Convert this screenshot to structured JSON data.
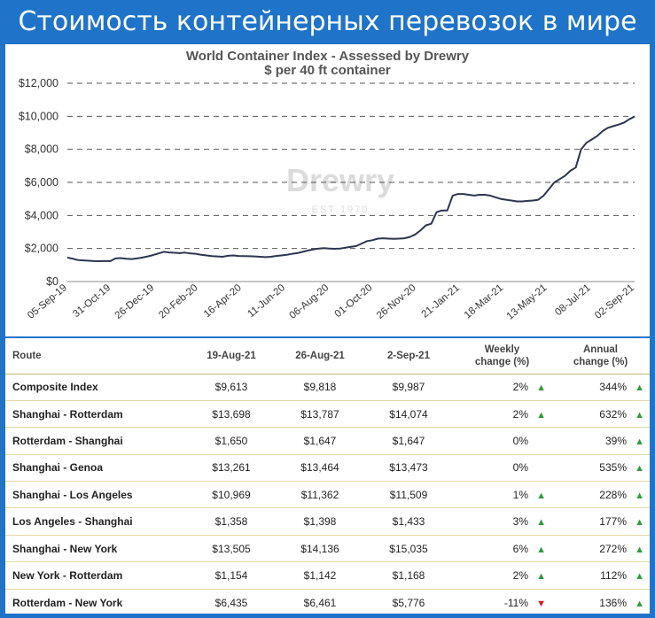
{
  "banner": {
    "title": "Стоимость контейнерных перевозок в мире"
  },
  "chart_data": {
    "type": "line",
    "title": "World Container Index - Assessed by Drewry",
    "subtitle": "$ per 40 ft container",
    "watermark": "Drewry",
    "watermark_sub": "EST 1970",
    "ylim": [
      0,
      12000
    ],
    "yticks": [
      0,
      2000,
      4000,
      6000,
      8000,
      10000,
      12000
    ],
    "ytick_labels": [
      "$0",
      "$2,000",
      "$4,000",
      "$6,000",
      "$8,000",
      "$10,000",
      "$12,000"
    ],
    "xtick_labels": [
      "05-Sep-19",
      "31-Oct-19",
      "26-Dec-19",
      "20-Feb-20",
      "16-Apr-20",
      "11-Jun-20",
      "06-Aug-20",
      "01-Oct-20",
      "26-Nov-20",
      "21-Jan-21",
      "18-Mar-21",
      "13-May-21",
      "08-Jul-21",
      "02-Sep-21"
    ],
    "grid": true,
    "line_color": "#2d3550",
    "series": [
      {
        "values": [
          1450,
          1380,
          1300,
          1280,
          1260,
          1240,
          1230,
          1250,
          1230,
          1400,
          1420,
          1380,
          1360,
          1400,
          1450,
          1520,
          1600,
          1700,
          1800,
          1760,
          1740,
          1720,
          1750,
          1700,
          1680,
          1620,
          1580,
          1540,
          1520,
          1500,
          1560,
          1580,
          1550,
          1540,
          1530,
          1520,
          1500,
          1480,
          1500,
          1550,
          1580,
          1620,
          1680,
          1720,
          1800,
          1880,
          1950,
          2000,
          2020,
          2000,
          1980,
          2000,
          2050,
          2100,
          2150,
          2300,
          2450,
          2500,
          2600,
          2620,
          2600,
          2580,
          2600,
          2620,
          2700,
          2850,
          3100,
          3400,
          3500,
          4200,
          4300,
          4300,
          5200,
          5300,
          5300,
          5250,
          5200,
          5250,
          5250,
          5200,
          5100,
          5000,
          4950,
          4900,
          4850,
          4850,
          4880,
          4900,
          4950,
          5200,
          5600,
          6000,
          6200,
          6400,
          6700,
          6900,
          8000,
          8400,
          8600,
          8800,
          9100,
          9300,
          9400,
          9500,
          9613,
          9818,
          9987
        ]
      }
    ]
  },
  "table": {
    "headers": {
      "route": "Route",
      "d1": "19-Aug-21",
      "d2": "26-Aug-21",
      "d3": "2-Sep-21",
      "weekly_l1": "Weekly",
      "weekly_l2": "change (%)",
      "annual_l1": "Annual",
      "annual_l2": "change (%)"
    },
    "rows": [
      {
        "route": "Composite Index",
        "d1": "$9,613",
        "d2": "$9,818",
        "d3": "$9,987",
        "weekly": "2%",
        "weekly_dir": "up",
        "annual": "344%",
        "annual_dir": "up"
      },
      {
        "route": "Shanghai - Rotterdam",
        "d1": "$13,698",
        "d2": "$13,787",
        "d3": "$14,074",
        "weekly": "2%",
        "weekly_dir": "up",
        "annual": "632%",
        "annual_dir": "up"
      },
      {
        "route": "Rotterdam - Shanghai",
        "d1": "$1,650",
        "d2": "$1,647",
        "d3": "$1,647",
        "weekly": "0%",
        "weekly_dir": "none",
        "annual": "39%",
        "annual_dir": "up"
      },
      {
        "route": "Shanghai - Genoa",
        "d1": "$13,261",
        "d2": "$13,464",
        "d3": "$13,473",
        "weekly": "0%",
        "weekly_dir": "none",
        "annual": "535%",
        "annual_dir": "up"
      },
      {
        "route": "Shanghai - Los Angeles",
        "d1": "$10,969",
        "d2": "$11,362",
        "d3": "$11,509",
        "weekly": "1%",
        "weekly_dir": "up",
        "annual": "228%",
        "annual_dir": "up"
      },
      {
        "route": "Los Angeles - Shanghai",
        "d1": "$1,358",
        "d2": "$1,398",
        "d3": "$1,433",
        "weekly": "3%",
        "weekly_dir": "up",
        "annual": "177%",
        "annual_dir": "up"
      },
      {
        "route": "Shanghai - New York",
        "d1": "$13,505",
        "d2": "$14,136",
        "d3": "$15,035",
        "weekly": "6%",
        "weekly_dir": "up",
        "annual": "272%",
        "annual_dir": "up"
      },
      {
        "route": "New York - Rotterdam",
        "d1": "$1,154",
        "d2": "$1,142",
        "d3": "$1,168",
        "weekly": "2%",
        "weekly_dir": "up",
        "annual": "112%",
        "annual_dir": "up"
      },
      {
        "route": "Rotterdam - New York",
        "d1": "$6,435",
        "d2": "$6,461",
        "d3": "$5,776",
        "weekly": "-11%",
        "weekly_dir": "down",
        "annual": "136%",
        "annual_dir": "up"
      }
    ]
  }
}
